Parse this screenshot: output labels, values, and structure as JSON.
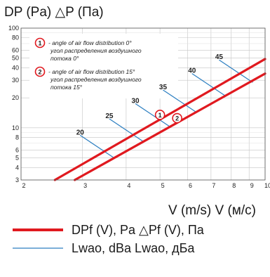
{
  "labels": {
    "y_axis": "DP (Pa)   △P (Па)",
    "x_axis": "V (m/s)   V (м/с)"
  },
  "legend": {
    "pressure": "DPf (V), Pa   △Pf (V), Па",
    "sound": "Lwao, dBa   Lwao, дБа",
    "pressure_color": "#e0191f",
    "sound_color": "#2d7fc1"
  },
  "notes": [
    {
      "marker": "1",
      "line1": "- angle of air flow distribution 0°",
      "line2": "угол распределения воздушного",
      "line3": "потока 0°"
    },
    {
      "marker": "2",
      "line1": "- angle of air flow distribution 15°",
      "line2": "угол распределения воздушного",
      "line3": "потока 15°"
    }
  ],
  "chart_data": {
    "type": "line",
    "xscale": "log",
    "yscale": "log",
    "xlim": [
      2,
      10
    ],
    "ylim": [
      3,
      100
    ],
    "xticks": [
      "2",
      "3",
      "4",
      "5",
      "6",
      "7",
      "8",
      "9",
      "10"
    ],
    "yticks": [
      "3",
      "4",
      "5",
      "6",
      "8",
      "10",
      "20",
      "30",
      "40",
      "50",
      "60",
      "80",
      "100"
    ],
    "grid": true,
    "series": [
      {
        "name": "1",
        "color": "#e0191f",
        "x": [
          2.5,
          10
        ],
        "y": [
          3,
          49
        ]
      },
      {
        "name": "2",
        "color": "#e0191f",
        "x": [
          2.85,
          10
        ],
        "y": [
          3,
          35
        ]
      }
    ],
    "markers": [
      {
        "label": "1",
        "x": 5.0,
        "y": 13.5
      },
      {
        "label": "2",
        "x": 5.6,
        "y": 12.5
      }
    ],
    "sound_levels": [
      {
        "label": "20",
        "x": 3.3,
        "y": 6.5
      },
      {
        "label": "25",
        "x": 4.0,
        "y": 9.5
      },
      {
        "label": "30",
        "x": 4.75,
        "y": 13.5
      },
      {
        "label": "35",
        "x": 5.7,
        "y": 18.5
      },
      {
        "label": "40",
        "x": 6.9,
        "y": 27
      },
      {
        "label": "45",
        "x": 8.25,
        "y": 37
      }
    ]
  }
}
